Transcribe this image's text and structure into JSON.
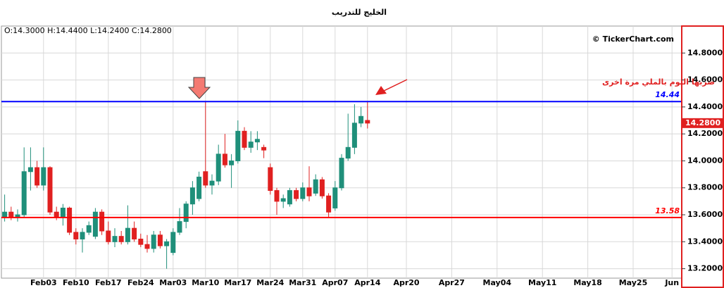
{
  "chart_data": {
    "type": "candlestick",
    "title": "الخليج للتدريب",
    "ohlc_text": "O:14.3000  H:14.4400  L:14.2400  C:14.2800",
    "watermark": "© TickerChart.com",
    "annotation": "ضربها اليوم بالملي مرة اخرى",
    "up_color": "#1f8f7a",
    "down_color": "#e02020",
    "grid": true,
    "ylim": [
      13.13,
      15.0
    ],
    "yticks": [
      {
        "value": 13.2,
        "label": "13.2000"
      },
      {
        "value": 13.4,
        "label": "13.4000"
      },
      {
        "value": 13.6,
        "label": "13.6000"
      },
      {
        "value": 13.8,
        "label": "13.8000"
      },
      {
        "value": 14.0,
        "label": "14.0000"
      },
      {
        "value": 14.2,
        "label": "14.2000"
      },
      {
        "value": 14.4,
        "label": "14.4000"
      },
      {
        "value": 14.6,
        "label": "14.6000"
      },
      {
        "value": 14.8,
        "label": "14.8000"
      }
    ],
    "hlines": [
      {
        "value": 14.44,
        "color": "#0000ff"
      },
      {
        "value": 13.58,
        "color": "#ff0000"
      }
    ],
    "last_price": {
      "value": 14.28,
      "label": "14.2800"
    },
    "categories": [
      null,
      null,
      null,
      null,
      null,
      null,
      "Feb03",
      null,
      null,
      null,
      null,
      "Feb10",
      null,
      null,
      null,
      null,
      "Feb17",
      null,
      null,
      null,
      null,
      "Feb24",
      null,
      null,
      null,
      null,
      "Mar03",
      null,
      null,
      null,
      null,
      "Mar10",
      null,
      null,
      null,
      null,
      "Mar17",
      null,
      null,
      null,
      null,
      "Mar24",
      null,
      null,
      null,
      null,
      "Mar31",
      null,
      null,
      null,
      null,
      "Apr07",
      null,
      null,
      null,
      null,
      "Apr14",
      null,
      null,
      null,
      null,
      null,
      "Apr20",
      null,
      null,
      null,
      null,
      null,
      null,
      "Apr27",
      null,
      null,
      null,
      null,
      null,
      null,
      "May04",
      null,
      null,
      null,
      null,
      null,
      null,
      "May11",
      null,
      null,
      null,
      null,
      null,
      null,
      "May18",
      null,
      null,
      null,
      null,
      null,
      null,
      "May25",
      null,
      null,
      null,
      null,
      null,
      "Jun",
      null
    ],
    "open": [
      13.58,
      13.62,
      13.58,
      13.6,
      13.92,
      13.95,
      13.82,
      13.95,
      13.62,
      13.58,
      13.65,
      13.47,
      13.42,
      13.47,
      13.44,
      13.62,
      13.48,
      13.4,
      13.44,
      13.4,
      13.5,
      13.42,
      13.38,
      13.35,
      13.45,
      13.37,
      13.32,
      13.47,
      13.55,
      13.68,
      13.72,
      13.92,
      13.82,
      13.85,
      14.05,
      13.97,
      14.0,
      14.22,
      14.1,
      14.14,
      14.1,
      13.95,
      13.78,
      13.7,
      13.68,
      13.78,
      13.72,
      13.8,
      13.76,
      13.86,
      13.74,
      13.65,
      13.8,
      14.02,
      14.1,
      14.28,
      14.3,
      null,
      null,
      null,
      null,
      null,
      null,
      null,
      null,
      null,
      null,
      null,
      null,
      null,
      null,
      null,
      null,
      null,
      null,
      null,
      null,
      null,
      null,
      null,
      null,
      null,
      null,
      null,
      null,
      null,
      null,
      null,
      null,
      null,
      null,
      null,
      null,
      null,
      null,
      null,
      null,
      null,
      null,
      null,
      null,
      null,
      null,
      null,
      null
    ],
    "high": [
      13.75,
      13.66,
      13.64,
      14.1,
      14.1,
      14.0,
      14.1,
      13.96,
      13.66,
      13.68,
      13.66,
      13.5,
      13.5,
      13.55,
      13.65,
      13.64,
      13.55,
      13.5,
      13.48,
      13.67,
      13.55,
      13.46,
      13.45,
      13.48,
      13.48,
      13.42,
      13.5,
      13.65,
      13.7,
      13.85,
      13.92,
      14.44,
      13.9,
      14.12,
      14.2,
      14.05,
      14.3,
      14.25,
      14.22,
      14.22,
      14.12,
      13.98,
      13.8,
      13.75,
      13.8,
      13.8,
      13.84,
      13.96,
      13.9,
      13.88,
      13.76,
      13.85,
      14.05,
      14.35,
      14.42,
      14.4,
      14.44,
      null,
      null,
      null,
      null,
      null,
      null,
      null,
      null,
      null,
      null,
      null,
      null,
      null,
      null,
      null,
      null,
      null,
      null,
      null,
      null,
      null,
      null,
      null,
      null,
      null,
      null,
      null,
      null,
      null,
      null,
      null,
      null,
      null,
      null,
      null,
      null,
      null,
      null,
      null,
      null,
      null,
      null,
      null,
      null,
      null,
      null,
      null,
      null
    ],
    "low": [
      13.55,
      13.56,
      13.55,
      13.58,
      13.78,
      13.8,
      13.78,
      13.6,
      13.56,
      13.52,
      13.45,
      13.38,
      13.32,
      13.45,
      13.42,
      13.45,
      13.38,
      13.36,
      13.38,
      13.38,
      13.4,
      13.36,
      13.32,
      13.32,
      13.35,
      13.2,
      13.3,
      13.45,
      13.5,
      13.6,
      13.7,
      13.8,
      13.75,
      13.82,
      13.95,
      13.8,
      13.98,
      14.08,
      14.06,
      14.08,
      14.02,
      13.75,
      13.6,
      13.65,
      13.66,
      13.7,
      13.7,
      13.7,
      13.74,
      13.72,
      13.58,
      13.63,
      13.78,
      14.0,
      14.05,
      14.25,
      14.24,
      null,
      null,
      null,
      null,
      null,
      null,
      null,
      null,
      null,
      null,
      null,
      null,
      null,
      null,
      null,
      null,
      null,
      null,
      null,
      null,
      null,
      null,
      null,
      null,
      null,
      null,
      null,
      null,
      null,
      null,
      null,
      null,
      null,
      null,
      null,
      null,
      null,
      null,
      null,
      null,
      null,
      null,
      null,
      null,
      null,
      null,
      null,
      null
    ],
    "close": [
      13.62,
      13.58,
      13.6,
      13.92,
      13.95,
      13.82,
      13.95,
      13.62,
      13.58,
      13.65,
      13.47,
      13.42,
      13.47,
      13.52,
      13.62,
      13.48,
      13.4,
      13.44,
      13.4,
      13.5,
      13.42,
      13.38,
      13.35,
      13.45,
      13.37,
      13.4,
      13.47,
      13.55,
      13.68,
      13.8,
      13.88,
      13.82,
      13.85,
      14.05,
      13.97,
      14.0,
      14.22,
      14.1,
      14.14,
      14.16,
      14.08,
      13.78,
      13.7,
      13.72,
      13.78,
      13.72,
      13.8,
      13.74,
      13.86,
      13.74,
      13.62,
      13.8,
      14.02,
      14.1,
      14.28,
      14.33,
      14.28,
      null,
      null,
      null,
      null,
      null,
      null,
      null,
      null,
      null,
      null,
      null,
      null,
      null,
      null,
      null,
      null,
      null,
      null,
      null,
      null,
      null,
      null,
      null,
      null,
      null,
      null,
      null,
      null,
      null,
      null,
      null,
      null,
      null,
      null,
      null,
      null,
      null,
      null,
      null,
      null,
      null,
      null,
      null,
      null,
      null,
      null,
      null,
      null
    ]
  }
}
